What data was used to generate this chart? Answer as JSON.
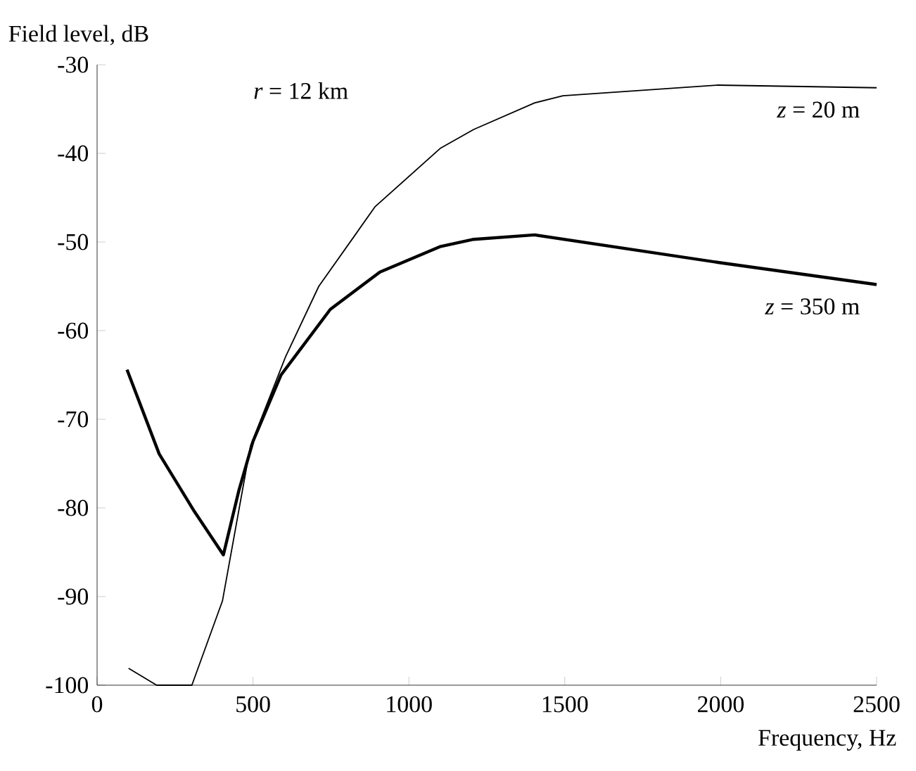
{
  "chart_data": {
    "type": "line",
    "xlabel": "Frequency, Hz",
    "ylabel": "Field level, dB",
    "annotations": [
      "*r* = 12 km"
    ],
    "xlim": [
      0,
      2500
    ],
    "ylim": [
      -100,
      -30
    ],
    "xticks": [
      0,
      500,
      1000,
      1500,
      2000,
      2500
    ],
    "yticks": [
      -100,
      -90,
      -80,
      -70,
      -60,
      -50,
      -40,
      -30
    ],
    "series": [
      {
        "name": "*z* = 20 m",
        "color": "#000000",
        "x": [
          101,
          191,
          304,
          402,
          492,
          605,
          711,
          892,
          1102,
          1208,
          1404,
          1494,
          1991,
          2500
        ],
        "values": [
          -98.1,
          -100,
          -100,
          -90.5,
          -73,
          -62.9,
          -55,
          -46,
          -39.4,
          -37.3,
          -34.3,
          -33.5,
          -32.3,
          -32.6
        ]
      },
      {
        "name": "*z* = 350 m",
        "color": "#000000",
        "x": [
          96,
          199,
          312,
          405,
          455,
          500,
          590,
          748,
          907,
          1102,
          1208,
          1404,
          1991,
          2500
        ],
        "values": [
          -64.4,
          -73.9,
          -80.4,
          -85.3,
          -78,
          -72.5,
          -65,
          -57.6,
          -53.4,
          -50.5,
          -49.7,
          -49.2,
          -52.3,
          -54.8
        ]
      }
    ]
  }
}
